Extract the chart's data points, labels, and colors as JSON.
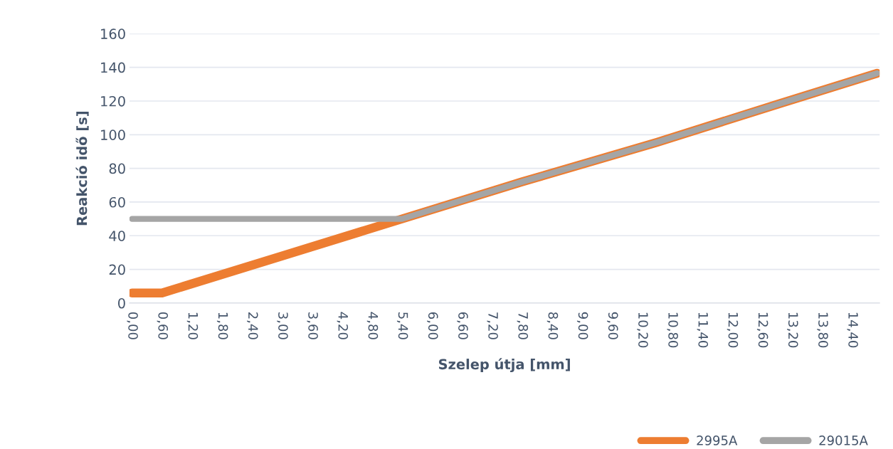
{
  "chart_data": {
    "type": "line",
    "xlabel": "Szelep útja [mm]",
    "ylabel": "Reakció idő [s]",
    "series": [
      {
        "name": "2995A",
        "color": "#ed7d31",
        "x": [
          0,
          0.6,
          3.0,
          5.4,
          7.8,
          10.5,
          12.9,
          14.9
        ],
        "values": [
          6,
          6,
          28,
          50,
          72,
          95.5,
          118,
          136.5
        ]
      },
      {
        "name": "29015A",
        "color": "#a5a5a5",
        "x": [
          0,
          5.4,
          7.8,
          10.5,
          12.9,
          14.9
        ],
        "values": [
          50,
          50,
          72,
          95.5,
          118,
          136.5
        ]
      }
    ],
    "xlim": [
      -0.05,
      14.95
    ],
    "xticks": [
      {
        "value": 0,
        "label": "0,00"
      },
      {
        "value": 0.6,
        "label": "0,60"
      },
      {
        "value": 1.2,
        "label": "1,20"
      },
      {
        "value": 1.8,
        "label": "1,80"
      },
      {
        "value": 2.4,
        "label": "2,40"
      },
      {
        "value": 3.0,
        "label": "3,00"
      },
      {
        "value": 3.6,
        "label": "3,60"
      },
      {
        "value": 4.2,
        "label": "4,20"
      },
      {
        "value": 4.8,
        "label": "4,80"
      },
      {
        "value": 5.4,
        "label": "5,40"
      },
      {
        "value": 6.0,
        "label": "6,00"
      },
      {
        "value": 6.6,
        "label": "6,60"
      },
      {
        "value": 7.2,
        "label": "7,20"
      },
      {
        "value": 7.8,
        "label": "7,80"
      },
      {
        "value": 8.4,
        "label": "8,40"
      },
      {
        "value": 9.0,
        "label": "9,00"
      },
      {
        "value": 9.6,
        "label": "9,60"
      },
      {
        "value": 10.2,
        "label": "10,20"
      },
      {
        "value": 10.8,
        "label": "10,80"
      },
      {
        "value": 11.4,
        "label": "11,40"
      },
      {
        "value": 12.0,
        "label": "12,00"
      },
      {
        "value": 12.6,
        "label": "12,60"
      },
      {
        "value": 13.2,
        "label": "13,20"
      },
      {
        "value": 13.8,
        "label": "13,80"
      },
      {
        "value": 14.4,
        "label": "14,40"
      }
    ],
    "ylim": [
      0,
      160
    ],
    "yticks": [
      0,
      20,
      40,
      60,
      80,
      100,
      120,
      140,
      160
    ],
    "grid": "y",
    "legend": "bottom right",
    "marker": "none",
    "line_style": "solid"
  }
}
